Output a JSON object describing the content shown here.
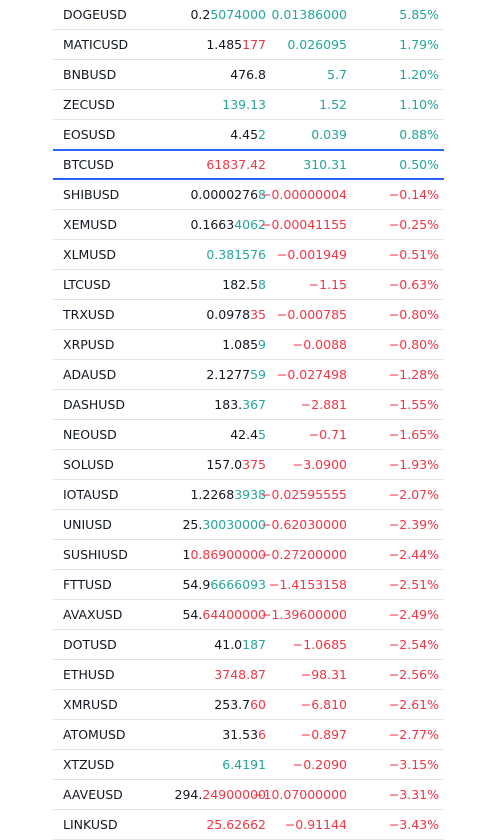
{
  "colors": {
    "up": "#26a69a",
    "down": "#f23645",
    "text": "#131722",
    "highlight_border": "#2962ff"
  },
  "rows": [
    {
      "symbol": "DOGEUSD",
      "last_head": "0.2",
      "last_tail": "5074000",
      "last_dir": "up",
      "change": "0.01386000",
      "change_pct": "5.85%",
      "dir": "up"
    },
    {
      "symbol": "MATICUSD",
      "last_head": "1.485",
      "last_tail": "177",
      "last_dir": "down",
      "change": "0.026095",
      "change_pct": "1.79%",
      "dir": "up"
    },
    {
      "symbol": "BNBUSD",
      "last_head": "476.8",
      "last_tail": "",
      "last_dir": "none",
      "change": "5.7",
      "change_pct": "1.20%",
      "dir": "up"
    },
    {
      "symbol": "ZECUSD",
      "last_head": "",
      "last_tail": "139.13",
      "last_dir": "up",
      "change": "1.52",
      "change_pct": "1.10%",
      "dir": "up"
    },
    {
      "symbol": "EOSUSD",
      "last_head": "4.45",
      "last_tail": "2",
      "last_dir": "up",
      "change": "0.039",
      "change_pct": "0.88%",
      "dir": "up"
    },
    {
      "symbol": "BTCUSD",
      "last_head": "",
      "last_tail": "61837.42",
      "last_dir": "down",
      "change": "310.31",
      "change_pct": "0.50%",
      "dir": "up",
      "highlight": true
    },
    {
      "symbol": "SHIBUSD",
      "last_head": "0.0000276",
      "last_tail": "8",
      "last_dir": "up",
      "change": "−0.00000004",
      "change_pct": "−0.14%",
      "dir": "down"
    },
    {
      "symbol": "XEMUSD",
      "last_head": "0.1663",
      "last_tail": "4062",
      "last_dir": "up",
      "change": "−0.00041155",
      "change_pct": "−0.25%",
      "dir": "down"
    },
    {
      "symbol": "XLMUSD",
      "last_head": "",
      "last_tail": "0.381576",
      "last_dir": "up",
      "change": "−0.001949",
      "change_pct": "−0.51%",
      "dir": "down"
    },
    {
      "symbol": "LTCUSD",
      "last_head": "182.5",
      "last_tail": "8",
      "last_dir": "up",
      "change": "−1.15",
      "change_pct": "−0.63%",
      "dir": "down"
    },
    {
      "symbol": "TRXUSD",
      "last_head": "0.0978",
      "last_tail": "35",
      "last_dir": "down",
      "change": "−0.000785",
      "change_pct": "−0.80%",
      "dir": "down"
    },
    {
      "symbol": "XRPUSD",
      "last_head": "1.085",
      "last_tail": "9",
      "last_dir": "up",
      "change": "−0.0088",
      "change_pct": "−0.80%",
      "dir": "down"
    },
    {
      "symbol": "ADAUSD",
      "last_head": "2.1277",
      "last_tail": "59",
      "last_dir": "up",
      "change": "−0.027498",
      "change_pct": "−1.28%",
      "dir": "down"
    },
    {
      "symbol": "DASHUSD",
      "last_head": "183.",
      "last_tail": "367",
      "last_dir": "up",
      "change": "−2.881",
      "change_pct": "−1.55%",
      "dir": "down"
    },
    {
      "symbol": "NEOUSD",
      "last_head": "42.4",
      "last_tail": "5",
      "last_dir": "up",
      "change": "−0.71",
      "change_pct": "−1.65%",
      "dir": "down"
    },
    {
      "symbol": "SOLUSD",
      "last_head": "157.0",
      "last_tail": "375",
      "last_dir": "down",
      "change": "−3.0900",
      "change_pct": "−1.93%",
      "dir": "down"
    },
    {
      "symbol": "IOTAUSD",
      "last_head": "1.2268",
      "last_tail": "3938",
      "last_dir": "up",
      "change": "−0.02595555",
      "change_pct": "−2.07%",
      "dir": "down"
    },
    {
      "symbol": "UNIUSD",
      "last_head": "25.",
      "last_tail": "30030000",
      "last_dir": "up",
      "change": "−0.62030000",
      "change_pct": "−2.39%",
      "dir": "down"
    },
    {
      "symbol": "SUSHIUSD",
      "last_head": "1",
      "last_tail": "0.86900000",
      "last_dir": "down",
      "change": "−0.27200000",
      "change_pct": "−2.44%",
      "dir": "down"
    },
    {
      "symbol": "FTTUSD",
      "last_head": "54.9",
      "last_tail": "6666093",
      "last_dir": "up",
      "change": "−1.4153158",
      "change_pct": "−2.51%",
      "dir": "down"
    },
    {
      "symbol": "AVAXUSD",
      "last_head": "54.",
      "last_tail": "64400000",
      "last_dir": "down",
      "change": "−1.39600000",
      "change_pct": "−2.49%",
      "dir": "down"
    },
    {
      "symbol": "DOTUSD",
      "last_head": "41.0",
      "last_tail": "187",
      "last_dir": "up",
      "change": "−1.0685",
      "change_pct": "−2.54%",
      "dir": "down"
    },
    {
      "symbol": "ETHUSD",
      "last_head": "",
      "last_tail": "3748.87",
      "last_dir": "down",
      "change": "−98.31",
      "change_pct": "−2.56%",
      "dir": "down"
    },
    {
      "symbol": "XMRUSD",
      "last_head": "253.7",
      "last_tail": "60",
      "last_dir": "down",
      "change": "−6.810",
      "change_pct": "−2.61%",
      "dir": "down"
    },
    {
      "symbol": "ATOMUSD",
      "last_head": "31.53",
      "last_tail": "6",
      "last_dir": "down",
      "change": "−0.897",
      "change_pct": "−2.77%",
      "dir": "down"
    },
    {
      "symbol": "XTZUSD",
      "last_head": "",
      "last_tail": "6.4191",
      "last_dir": "up",
      "change": "−0.2090",
      "change_pct": "−3.15%",
      "dir": "down"
    },
    {
      "symbol": "AAVEUSD",
      "last_head": "294.",
      "last_tail": "24900000",
      "last_dir": "down",
      "change": "−10.07000000",
      "change_pct": "−3.31%",
      "dir": "down"
    },
    {
      "symbol": "LINKUSD",
      "last_head": "",
      "last_tail": "25.62662",
      "last_dir": "down",
      "change": "−0.91144",
      "change_pct": "−3.43%",
      "dir": "down"
    }
  ]
}
